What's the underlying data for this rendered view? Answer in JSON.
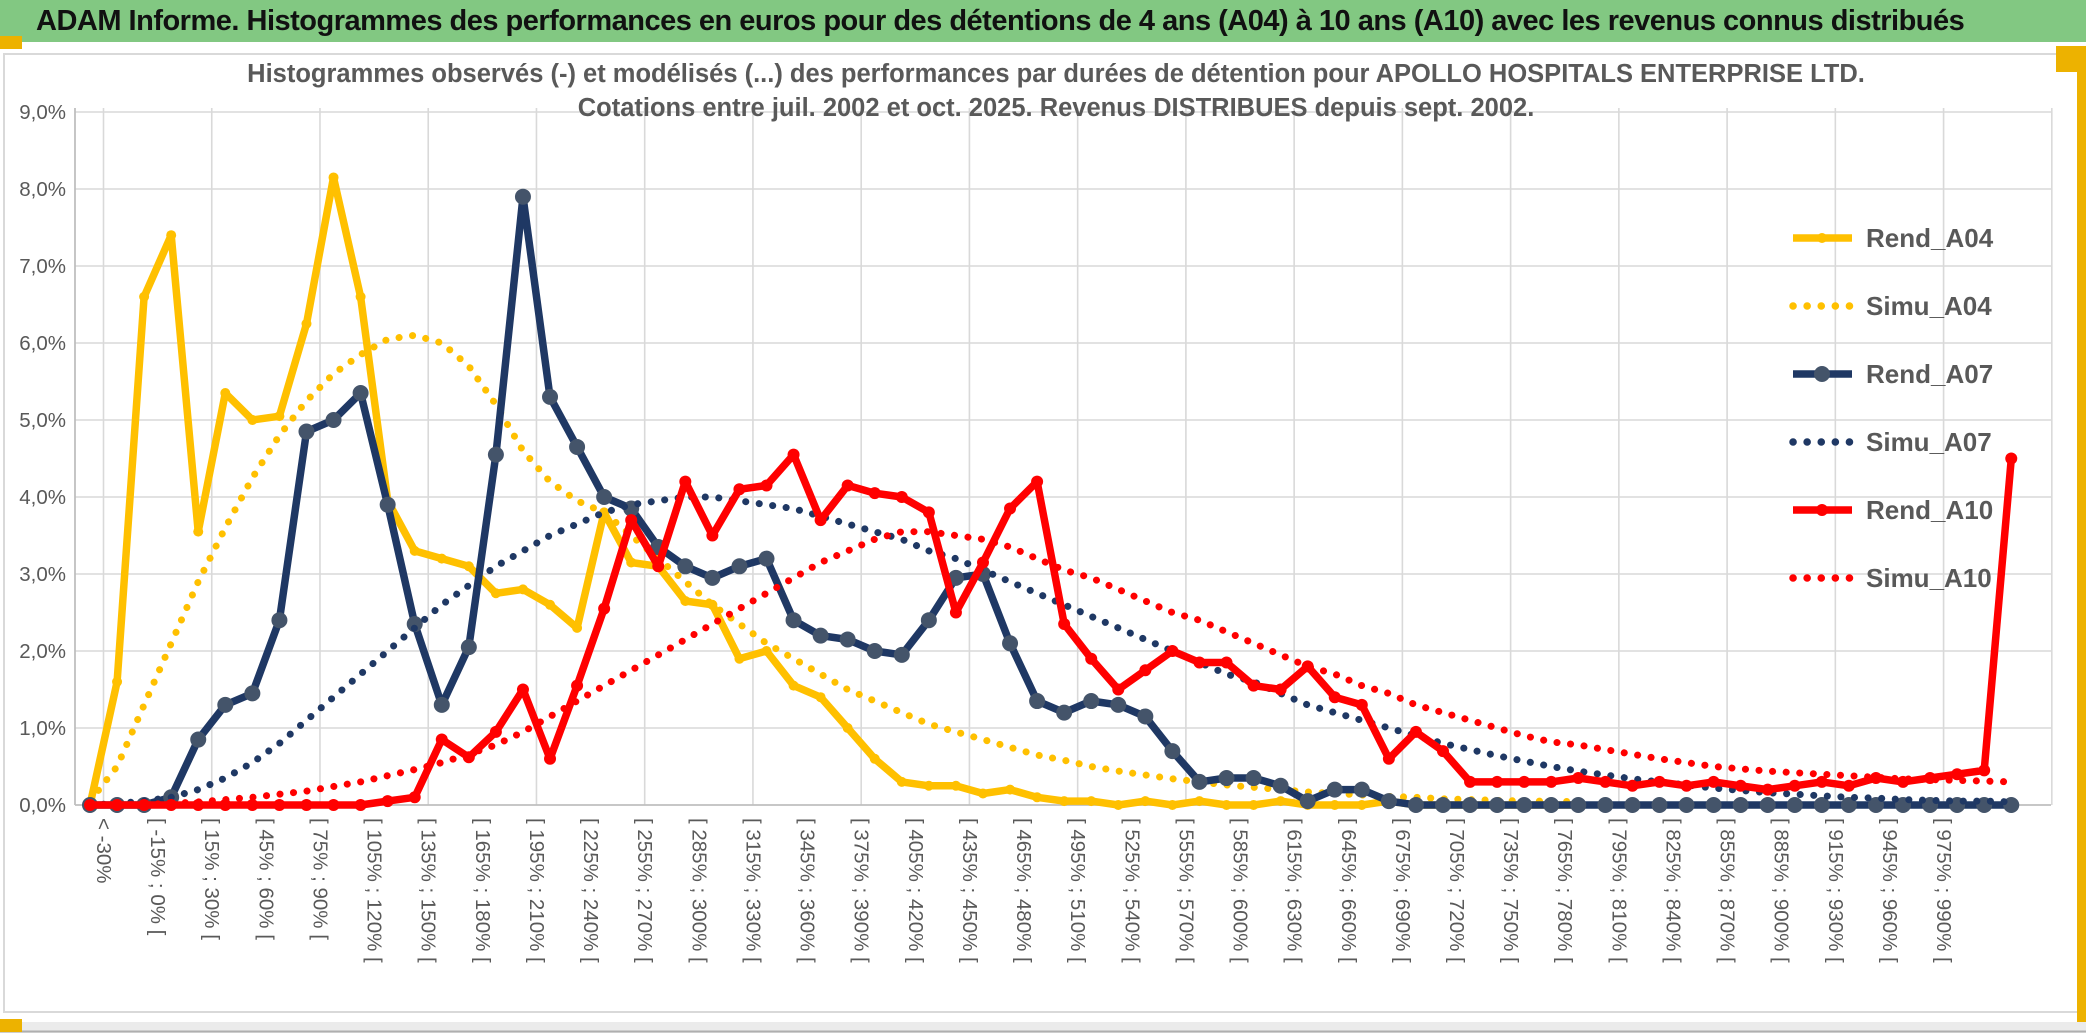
{
  "window": {
    "title": "ADAM Informe. Histogrammes des performances en euros pour des détentions de 4 ans (A04) à 10 ans (A10) avec les revenus connus distribués"
  },
  "colors": {
    "header_green": "#82C882",
    "accent_gold": "#EDB200",
    "text_gray": "#595959",
    "gridline": "#D9D9D9",
    "bottom_strip": "#EBEBEB",
    "series_gold": "#FFC000",
    "series_navy": "#1F3864",
    "series_navy_marker": "#44546A",
    "series_red": "#FF0000"
  },
  "chart_data": {
    "type": "line",
    "title_line1": "Histogrammes observés (-) et modélisés (...) des performances par durées de détention pour APOLLO HOSPITALS ENTERPRISE LTD.",
    "title_line2": "Cotations entre juil. 2002 et oct. 2025. Revenus DISTRIBUES depuis sept. 2002.",
    "ylabel": "",
    "xlabel": "",
    "ylim": [
      0,
      9
    ],
    "grid": true,
    "legend_position": "right",
    "ytick_labels": [
      "9,0%",
      "8,0%",
      "7,0%",
      "6,0%",
      "5,0%",
      "4,0%",
      "3,0%",
      "2,0%",
      "1,0%",
      "0,0%"
    ],
    "categories": [
      "< -30%",
      "",
      "[ -15% ; 0% [",
      "",
      "[ 15% ; 30% [",
      "",
      "[ 45% ; 60% [",
      "",
      "[ 75% ; 90% [",
      "",
      "[ 105% ; 120% [",
      "",
      "[ 135% ; 150% [",
      "",
      "[ 165% ; 180% [",
      "",
      "[ 195% ; 210% [",
      "",
      "[ 225% ; 240% [",
      "",
      "[ 255% ; 270% [",
      "",
      "[ 285% ; 300% [",
      "",
      "[ 315% ; 330% [",
      "",
      "[ 345% ; 360% [",
      "",
      "[ 375% ; 390% [",
      "",
      "[ 405% ; 420% [",
      "",
      "[ 435% ; 450% [",
      "",
      "[ 465% ; 480% [",
      "",
      "[ 495% ; 510% [",
      "",
      "[ 525% ; 540% [",
      "",
      "[ 555% ; 570% [",
      "",
      "[ 585% ; 600% [",
      "",
      "[ 615% ; 630% [",
      "",
      "[ 645% ; 660% [",
      "",
      "[ 675% ; 690% [",
      "",
      "[ 705% ; 720% [",
      "",
      "[ 735% ; 750% [",
      "",
      "[ 765% ; 780% [",
      "",
      "[ 795% ; 810% [",
      "",
      "[ 825% ; 840% [",
      "",
      "[ 855% ; 870% [",
      "",
      "[ 885% ; 900% [",
      "",
      "[ 915% ; 930% [",
      "",
      "[ 945% ; 960% [",
      "",
      "[ 975% ; 990% [",
      "",
      "",
      ""
    ],
    "series": [
      {
        "name": "Rend_A04",
        "style": "solid",
        "color": "#FFC000",
        "marker_color": "#FFC000",
        "marker_r": 5,
        "values": [
          0,
          1.6,
          6.6,
          7.4,
          3.55,
          5.35,
          5.0,
          5.05,
          6.25,
          8.15,
          6.6,
          3.95,
          3.3,
          3.2,
          3.1,
          2.75,
          2.8,
          2.6,
          2.3,
          3.8,
          3.15,
          3.1,
          2.65,
          2.6,
          1.9,
          2.0,
          1.55,
          1.4,
          1.0,
          0.6,
          0.3,
          0.25,
          0.25,
          0.15,
          0.2,
          0.1,
          0.05,
          0.05,
          0,
          0.05,
          0,
          0.05,
          0,
          0,
          0.05,
          0,
          0,
          0,
          0.05,
          0,
          0,
          0,
          0,
          0,
          0,
          0,
          null,
          null,
          null,
          null,
          null,
          null,
          null,
          null,
          null,
          null,
          null,
          null,
          null,
          null,
          null,
          null
        ]
      },
      {
        "name": "Simu_A04",
        "style": "dotted",
        "color": "#FFC000",
        "values": [
          0.05,
          0.5,
          1.3,
          2.1,
          2.9,
          3.6,
          4.25,
          4.8,
          5.25,
          5.6,
          5.85,
          6.05,
          6.1,
          6.0,
          5.7,
          5.2,
          4.6,
          4.2,
          3.95,
          3.8,
          3.5,
          3.2,
          2.9,
          2.6,
          2.35,
          2.1,
          1.9,
          1.7,
          1.5,
          1.35,
          1.2,
          1.05,
          0.95,
          0.85,
          0.75,
          0.65,
          0.58,
          0.5,
          0.44,
          0.39,
          0.34,
          0.3,
          0.26,
          0.23,
          0.2,
          0.17,
          0.15,
          0.13,
          0.11,
          0.1,
          0.08,
          0.07,
          0.06,
          0.05,
          0.05,
          0.04,
          null,
          null,
          null,
          null,
          null,
          null,
          null,
          null,
          null,
          null,
          null,
          null,
          null,
          null,
          null,
          null
        ]
      },
      {
        "name": "Rend_A07",
        "style": "solid",
        "color": "#1F3864",
        "marker_color": "#44546A",
        "marker_r": 8,
        "values": [
          0,
          0,
          0,
          0.1,
          0.85,
          1.3,
          1.45,
          2.4,
          4.85,
          5.0,
          5.35,
          3.9,
          2.35,
          1.3,
          2.05,
          4.55,
          7.9,
          5.3,
          4.65,
          4.0,
          3.85,
          3.35,
          3.1,
          2.95,
          3.1,
          3.2,
          2.4,
          2.2,
          2.15,
          2.0,
          1.95,
          2.4,
          2.95,
          3.0,
          2.1,
          1.35,
          1.2,
          1.35,
          1.3,
          1.15,
          0.7,
          0.3,
          0.35,
          0.35,
          0.25,
          0.05,
          0.2,
          0.2,
          0.05,
          0,
          0,
          0,
          0,
          0,
          0,
          0,
          0,
          0,
          0,
          0,
          0,
          0,
          0,
          0,
          0,
          0,
          0,
          0,
          0,
          0,
          0,
          0
        ]
      },
      {
        "name": "Simu_A07",
        "style": "dotted",
        "color": "#1F3864",
        "values": [
          0,
          0.02,
          0.05,
          0.1,
          0.2,
          0.35,
          0.55,
          0.8,
          1.1,
          1.4,
          1.7,
          2.0,
          2.3,
          2.6,
          2.85,
          3.1,
          3.3,
          3.5,
          3.65,
          3.8,
          3.9,
          3.95,
          4.0,
          4.0,
          3.95,
          3.9,
          3.85,
          3.75,
          3.65,
          3.55,
          3.45,
          3.3,
          3.2,
          3.05,
          2.9,
          2.75,
          2.6,
          2.45,
          2.3,
          2.15,
          2.0,
          1.85,
          1.7,
          1.6,
          1.45,
          1.3,
          1.2,
          1.1,
          1.0,
          0.9,
          0.8,
          0.72,
          0.64,
          0.57,
          0.5,
          0.44,
          0.39,
          0.34,
          0.3,
          0.26,
          0.22,
          0.19,
          0.16,
          0.14,
          0.12,
          0.1,
          0.09,
          0.07,
          0.06,
          0.05,
          0.05,
          0.04
        ]
      },
      {
        "name": "Rend_A10",
        "style": "solid",
        "color": "#FF0000",
        "marker_color": "#FF0000",
        "marker_r": 6,
        "values": [
          0,
          0,
          0,
          0,
          0,
          0,
          0,
          0,
          0,
          0,
          0,
          0.05,
          0.1,
          0.85,
          0.62,
          0.95,
          1.5,
          0.6,
          1.55,
          2.55,
          3.7,
          3.1,
          4.2,
          3.5,
          4.1,
          4.15,
          4.55,
          3.7,
          4.15,
          4.05,
          4.0,
          3.8,
          2.5,
          3.15,
          3.85,
          4.2,
          2.35,
          1.9,
          1.5,
          1.75,
          2.0,
          1.85,
          1.85,
          1.55,
          1.5,
          1.8,
          1.4,
          1.3,
          0.6,
          0.95,
          0.7,
          0.3,
          0.3,
          0.3,
          0.3,
          0.35,
          0.3,
          0.25,
          0.3,
          0.25,
          0.3,
          0.25,
          0.2,
          0.25,
          0.3,
          0.25,
          0.35,
          0.3,
          0.35,
          0.4,
          0.45,
          4.5
        ]
      },
      {
        "name": "Simu_A10",
        "style": "dotted",
        "color": "#FF0000",
        "values": [
          0,
          0,
          0.01,
          0.02,
          0.04,
          0.07,
          0.1,
          0.14,
          0.18,
          0.24,
          0.3,
          0.38,
          0.46,
          0.55,
          0.66,
          0.78,
          0.95,
          1.15,
          1.35,
          1.55,
          1.75,
          1.95,
          2.15,
          2.35,
          2.55,
          2.75,
          2.95,
          3.15,
          3.3,
          3.45,
          3.55,
          3.55,
          3.5,
          3.45,
          3.35,
          3.2,
          3.05,
          2.95,
          2.8,
          2.65,
          2.5,
          2.4,
          2.25,
          2.1,
          1.95,
          1.8,
          1.7,
          1.55,
          1.45,
          1.3,
          1.2,
          1.1,
          1.0,
          0.9,
          0.82,
          0.78,
          0.72,
          0.66,
          0.6,
          0.55,
          0.5,
          0.47,
          0.44,
          0.42,
          0.4,
          0.38,
          0.36,
          0.34,
          0.33,
          0.32,
          0.31,
          0.3
        ]
      }
    ]
  }
}
